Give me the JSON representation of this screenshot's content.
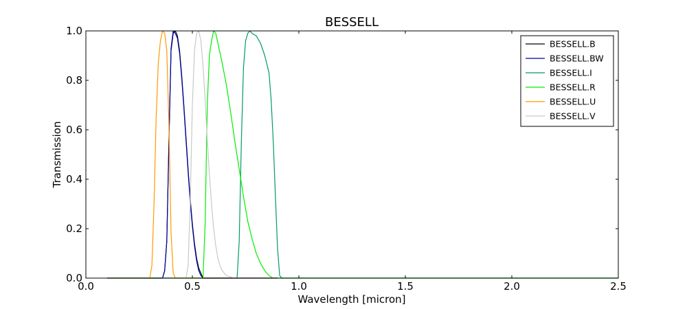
{
  "chart_data": {
    "type": "line",
    "title": "BESSELL",
    "xlabel": "Wavelength [micron]",
    "ylabel": "Transmission",
    "xlim": [
      0.0,
      2.5
    ],
    "ylim": [
      0.0,
      1.0
    ],
    "xticks": [
      "0.0",
      "0.5",
      "1.0",
      "1.5",
      "2.0",
      "2.5"
    ],
    "yticks": [
      "0.0",
      "0.2",
      "0.4",
      "0.6",
      "0.8",
      "1.0"
    ],
    "grid": false,
    "legend_position": "top-right",
    "series": [
      {
        "name": "BESSELL.B",
        "color": "#000000",
        "points": [
          [
            0.1,
            0
          ],
          [
            0.36,
            0
          ],
          [
            0.37,
            0.03
          ],
          [
            0.38,
            0.15
          ],
          [
            0.39,
            0.55
          ],
          [
            0.4,
            0.92
          ],
          [
            0.41,
            0.99
          ],
          [
            0.42,
            1.0
          ],
          [
            0.43,
            0.98
          ],
          [
            0.44,
            0.92
          ],
          [
            0.45,
            0.82
          ],
          [
            0.46,
            0.7
          ],
          [
            0.47,
            0.57
          ],
          [
            0.48,
            0.44
          ],
          [
            0.49,
            0.32
          ],
          [
            0.5,
            0.22
          ],
          [
            0.51,
            0.14
          ],
          [
            0.52,
            0.08
          ],
          [
            0.53,
            0.04
          ],
          [
            0.54,
            0.02
          ],
          [
            0.55,
            0.0
          ],
          [
            0.9,
            0
          ]
        ]
      },
      {
        "name": "BESSELL.BW",
        "color": "#0000aa",
        "points": [
          [
            0.1,
            0
          ],
          [
            0.36,
            0
          ],
          [
            0.37,
            0.03
          ],
          [
            0.38,
            0.15
          ],
          [
            0.39,
            0.55
          ],
          [
            0.4,
            0.93
          ],
          [
            0.41,
            1.0
          ],
          [
            0.42,
            0.99
          ],
          [
            0.43,
            0.97
          ],
          [
            0.44,
            0.91
          ],
          [
            0.45,
            0.81
          ],
          [
            0.46,
            0.69
          ],
          [
            0.47,
            0.56
          ],
          [
            0.48,
            0.43
          ],
          [
            0.49,
            0.31
          ],
          [
            0.5,
            0.21
          ],
          [
            0.51,
            0.13
          ],
          [
            0.52,
            0.07
          ],
          [
            0.53,
            0.03
          ],
          [
            0.54,
            0.01
          ],
          [
            0.55,
            0.0
          ],
          [
            0.9,
            0
          ]
        ]
      },
      {
        "name": "BESSELL.I",
        "color": "#009966",
        "points": [
          [
            0.1,
            0
          ],
          [
            0.71,
            0
          ],
          [
            0.72,
            0.15
          ],
          [
            0.73,
            0.55
          ],
          [
            0.74,
            0.85
          ],
          [
            0.75,
            0.96
          ],
          [
            0.76,
            0.99
          ],
          [
            0.77,
            1.0
          ],
          [
            0.78,
            0.99
          ],
          [
            0.8,
            0.98
          ],
          [
            0.82,
            0.95
          ],
          [
            0.84,
            0.9
          ],
          [
            0.86,
            0.83
          ],
          [
            0.87,
            0.72
          ],
          [
            0.88,
            0.55
          ],
          [
            0.89,
            0.33
          ],
          [
            0.9,
            0.12
          ],
          [
            0.91,
            0.01
          ],
          [
            0.92,
            0
          ],
          [
            2.5,
            0
          ]
        ]
      },
      {
        "name": "BESSELL.R",
        "color": "#00ee00",
        "points": [
          [
            0.1,
            0
          ],
          [
            0.55,
            0
          ],
          [
            0.56,
            0.22
          ],
          [
            0.57,
            0.7
          ],
          [
            0.58,
            0.9
          ],
          [
            0.59,
            0.96
          ],
          [
            0.6,
            1.0
          ],
          [
            0.61,
            0.99
          ],
          [
            0.62,
            0.95
          ],
          [
            0.64,
            0.87
          ],
          [
            0.66,
            0.78
          ],
          [
            0.68,
            0.67
          ],
          [
            0.7,
            0.55
          ],
          [
            0.72,
            0.44
          ],
          [
            0.74,
            0.33
          ],
          [
            0.76,
            0.23
          ],
          [
            0.78,
            0.16
          ],
          [
            0.8,
            0.1
          ],
          [
            0.82,
            0.06
          ],
          [
            0.84,
            0.03
          ],
          [
            0.86,
            0.01
          ],
          [
            0.88,
            0.0
          ],
          [
            2.5,
            0
          ]
        ]
      },
      {
        "name": "BESSELL.U",
        "color": "#ff9900",
        "points": [
          [
            0.1,
            0
          ],
          [
            0.3,
            0
          ],
          [
            0.31,
            0.05
          ],
          [
            0.32,
            0.3
          ],
          [
            0.33,
            0.65
          ],
          [
            0.34,
            0.87
          ],
          [
            0.35,
            0.96
          ],
          [
            0.36,
            1.0
          ],
          [
            0.37,
            0.99
          ],
          [
            0.38,
            0.92
          ],
          [
            0.39,
            0.62
          ],
          [
            0.4,
            0.18
          ],
          [
            0.41,
            0.02
          ],
          [
            0.42,
            0.0
          ],
          [
            0.9,
            0
          ]
        ]
      },
      {
        "name": "BESSELL.V",
        "color": "#c8c8c8",
        "points": [
          [
            0.1,
            0
          ],
          [
            0.47,
            0
          ],
          [
            0.48,
            0.05
          ],
          [
            0.49,
            0.3
          ],
          [
            0.5,
            0.7
          ],
          [
            0.51,
            0.92
          ],
          [
            0.52,
            0.99
          ],
          [
            0.53,
            1.0
          ],
          [
            0.54,
            0.96
          ],
          [
            0.55,
            0.86
          ],
          [
            0.56,
            0.72
          ],
          [
            0.57,
            0.56
          ],
          [
            0.58,
            0.42
          ],
          [
            0.59,
            0.3
          ],
          [
            0.6,
            0.2
          ],
          [
            0.61,
            0.13
          ],
          [
            0.62,
            0.08
          ],
          [
            0.63,
            0.05
          ],
          [
            0.64,
            0.03
          ],
          [
            0.65,
            0.02
          ],
          [
            0.66,
            0.01
          ],
          [
            0.7,
            0.0
          ],
          [
            0.9,
            0
          ]
        ]
      }
    ]
  }
}
